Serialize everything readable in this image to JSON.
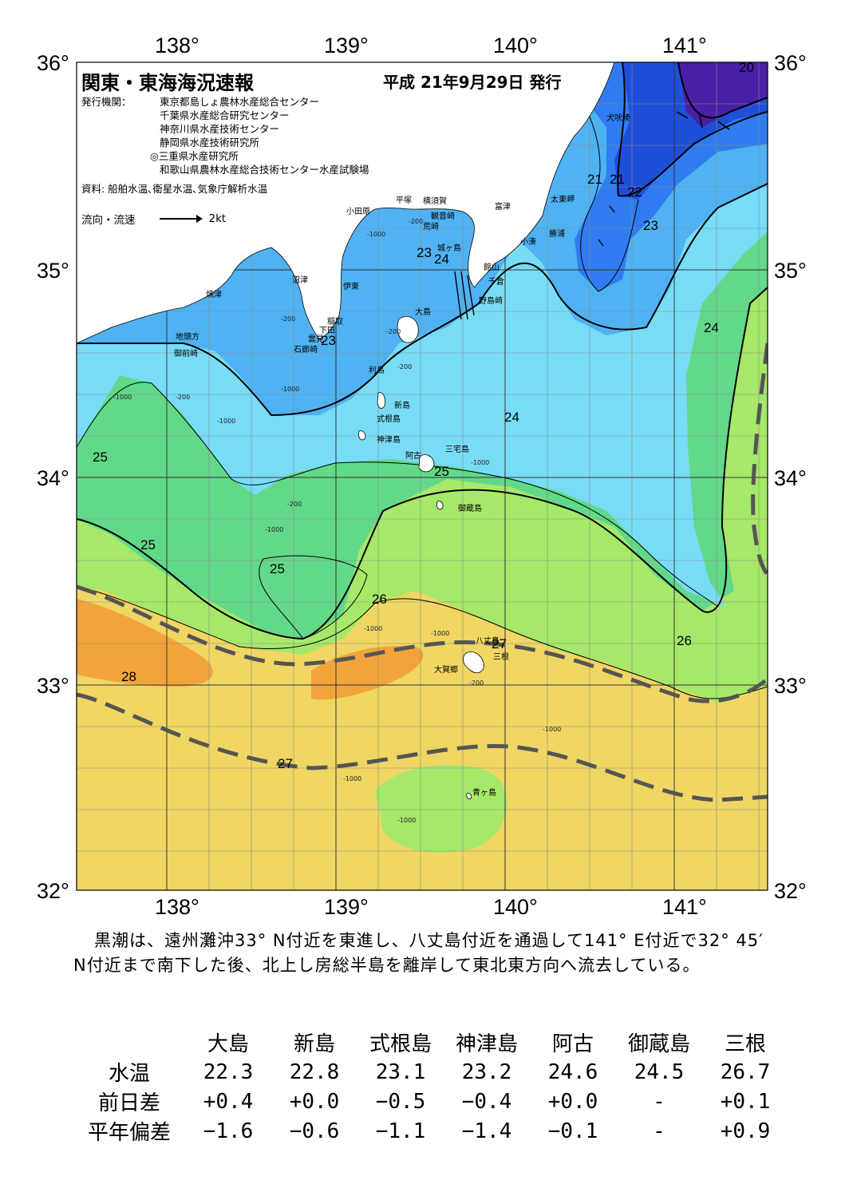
{
  "title": "関東・東海海況速報",
  "issue_date": "平成 21年9月29日 発行",
  "issuers": {
    "label": "発行機関：",
    "organizations": [
      "東京都島しょ農林水産総合センター",
      "千葉県水産総合研究センター",
      "神奈川県水産技術センター",
      "静岡県水産技術研究所",
      "◎三重県水産研究所",
      "和歌山県農林水産総合技術センター水産試験場"
    ]
  },
  "source": "資料: 船舶水温､衛星水温､気象庁解析水温",
  "flow_legend": {
    "label": "流向・流速",
    "scale": "2kt"
  },
  "axes": {
    "lon_labels": [
      "138°",
      "139°",
      "140°",
      "141°"
    ],
    "lat_labels": [
      "36°",
      "35°",
      "34°",
      "33°",
      "32°"
    ]
  },
  "colors": {
    "t20": "#4a1fa8",
    "t21": "#1f4fd8",
    "t22": "#2f7cf0",
    "t23": "#4fb2f2",
    "t24": "#78dcf6",
    "t25": "#62d889",
    "t26": "#a6e86a",
    "t27": "#f0d663",
    "t28": "#f2a43a",
    "kuroshio": "#555555",
    "land": "#ffffff"
  },
  "isotherm_labels": [
    "20",
    "21",
    "21",
    "22",
    "23",
    "23",
    "24",
    "23",
    "24",
    "24",
    "25",
    "25",
    "25",
    "25",
    "26",
    "26",
    "27",
    "28",
    "27"
  ],
  "depth_labels": [
    "-200",
    "-1000",
    "-200",
    "-1000",
    "-200",
    "-1000",
    "-200",
    "-1000",
    "-200",
    "-1000",
    "-1000",
    "-200",
    "-1000",
    "-1000",
    "-1000",
    "-1000",
    "-200",
    "-1000"
  ],
  "places": [
    "犬吠埼",
    "太東岬",
    "勝浦",
    "小湊",
    "富津",
    "横須賀",
    "観音崎",
    "平塚",
    "荒崎",
    "城ヶ島",
    "館山",
    "千倉",
    "野島崎",
    "小田原",
    "沼津",
    "伊東",
    "焼津",
    "稲取",
    "下田",
    "雲見",
    "石廊崎",
    "地頭方",
    "御前崎",
    "大島",
    "利島",
    "新島",
    "式根島",
    "神津島",
    "三宅島",
    "阿古",
    "御蔵島",
    "八丈島",
    "三根",
    "大賀郷",
    "青ヶ島"
  ],
  "summary": "黒潮は、遠州灘沖33° N付近を東進し、八丈島付近を通過して141° E付近で32° 45′ N付近まで南下した後、北上し房総半島を離岸して東北東方向へ流去している。",
  "stats_table": {
    "columns": [
      "大島",
      "新島",
      "式根島",
      "神津島",
      "阿古",
      "御蔵島",
      "三根"
    ],
    "rows": [
      {
        "label": "水温",
        "values": [
          "22.3",
          "22.8",
          "23.1",
          "23.2",
          "24.6",
          "24.5",
          "26.7"
        ]
      },
      {
        "label": "前日差",
        "values": [
          "+0.4",
          "+0.0",
          "−0.5",
          "−0.4",
          "+0.0",
          "-",
          "+0.1"
        ]
      },
      {
        "label": "平年偏差",
        "values": [
          "−1.6",
          "−0.6",
          "−1.1",
          "−1.4",
          "−0.1",
          "-",
          "+0.9"
        ]
      }
    ]
  }
}
